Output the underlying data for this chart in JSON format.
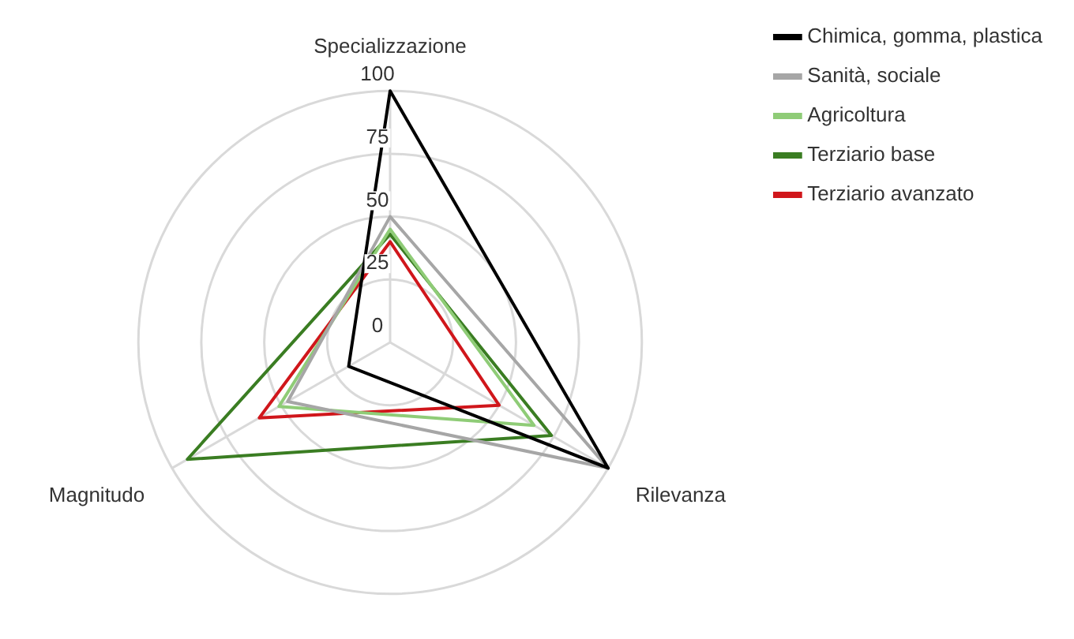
{
  "chart_data": {
    "type": "radar",
    "categories": [
      "Specializzazione",
      "Rilevanza",
      "Magnitudo"
    ],
    "series": [
      {
        "name": "Chimica, gomma, plastica",
        "color": "#000000",
        "values": [
          100,
          100,
          19
        ]
      },
      {
        "name": "Sanità, sociale",
        "color": "#a6a6a6",
        "values": [
          50,
          100,
          47
        ]
      },
      {
        "name": "Agricoltura",
        "color": "#8fcc77",
        "values": [
          45,
          66,
          51
        ]
      },
      {
        "name": "Terziario base",
        "color": "#3a7d22",
        "values": [
          43,
          74,
          93
        ]
      },
      {
        "name": "Terziario avanzato",
        "color": "#d0161b",
        "values": [
          40,
          50,
          60
        ]
      }
    ],
    "ylim": [
      0,
      100
    ],
    "yticks": [
      0,
      25,
      50,
      75,
      100
    ],
    "grid": true,
    "legend": "top right",
    "marker": "none"
  }
}
